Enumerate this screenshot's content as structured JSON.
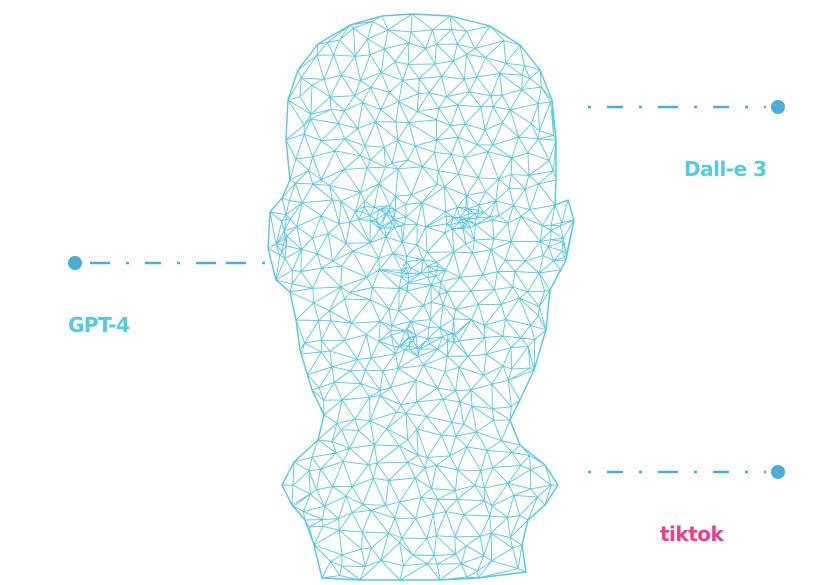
{
  "colors": {
    "wireframe": "#56c8e8",
    "connector": "#4aafd6",
    "label_blue": "#56c8e8",
    "label_pink": "#ec3d8f",
    "background": "#ffffff"
  },
  "illustration": {
    "icon": "wireframe-head-icon"
  },
  "labels": {
    "dalle": "Dall-e 3",
    "gpt": "GPT-4",
    "tiktok": "tiktok"
  }
}
